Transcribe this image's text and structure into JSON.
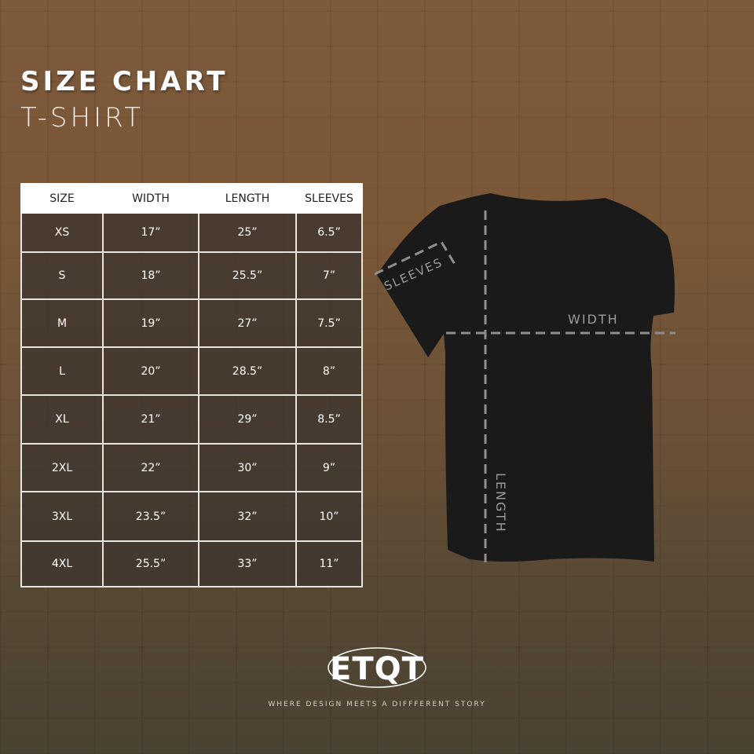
{
  "header": {
    "title": "SIZE CHART",
    "subtitle": "T-SHIRT"
  },
  "table": {
    "columns": [
      "SIZE",
      "WIDTH",
      "LENGTH",
      "SLEEVES"
    ],
    "rows": [
      [
        "XS",
        "17”",
        "25”",
        "6.5”"
      ],
      [
        "S",
        "18”",
        "25.5”",
        "7”"
      ],
      [
        "M",
        "19”",
        "27”",
        "7.5”"
      ],
      [
        "L",
        "20”",
        "28.5”",
        "8”"
      ],
      [
        "XL",
        "21”",
        "29”",
        "8.5”"
      ],
      [
        "2XL",
        "22”",
        "30”",
        "9”"
      ],
      [
        "3XL",
        "23.5”",
        "32”",
        "10”"
      ],
      [
        "4XL",
        "25.5”",
        "33”",
        "11”"
      ]
    ]
  },
  "diagram": {
    "sleeves_label": "SLEEVES",
    "width_label": "WIDTH",
    "length_label": "LENGTH"
  },
  "brand": {
    "logo_text": "ETQT",
    "tagline": "WHERE DESIGN MEETS A DIFFFERENT STORY"
  }
}
